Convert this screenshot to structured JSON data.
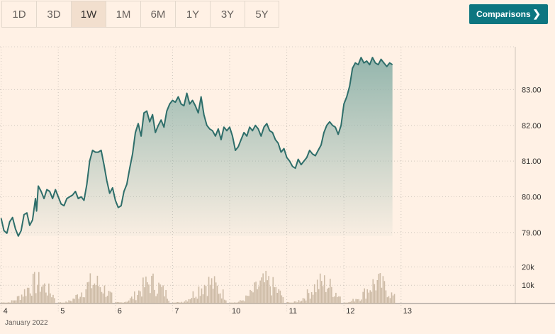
{
  "toolbar": {
    "ranges": [
      "1D",
      "3D",
      "1W",
      "1M",
      "6M",
      "1Y",
      "3Y",
      "5Y"
    ],
    "active_range": "1W",
    "comparisons_label": "Comparisons",
    "comparisons_icon": "chevron-right-icon"
  },
  "colors": {
    "background": "#fff1e5",
    "line": "#2e6e6a",
    "area_top": "#8fb3aa",
    "volume": "#cdbba6",
    "accent_button": "#0d7680"
  },
  "chart_data": {
    "type": "area",
    "price": {
      "ylim": [
        78.6,
        84.2
      ],
      "yticks": [
        "83.00",
        "82.00",
        "81.00",
        "80.00",
        "79.00"
      ],
      "ytick_values": [
        83,
        82,
        81,
        80,
        79
      ],
      "x_domain": [
        3.98,
        13.0
      ],
      "points": [
        [
          4.0,
          79.4
        ],
        [
          4.05,
          79.05
        ],
        [
          4.1,
          78.98
        ],
        [
          4.15,
          79.3
        ],
        [
          4.2,
          79.42
        ],
        [
          4.25,
          79.1
        ],
        [
          4.3,
          78.9
        ],
        [
          4.35,
          79.05
        ],
        [
          4.4,
          79.5
        ],
        [
          4.45,
          79.55
        ],
        [
          4.5,
          79.2
        ],
        [
          4.55,
          79.35
        ],
        [
          4.6,
          79.95
        ],
        [
          4.62,
          79.6
        ],
        [
          4.65,
          80.3
        ],
        [
          4.7,
          80.15
        ],
        [
          4.75,
          79.95
        ],
        [
          4.8,
          80.2
        ],
        [
          4.85,
          80.15
        ],
        [
          4.9,
          79.95
        ],
        [
          4.95,
          80.2
        ],
        [
          5.0,
          80.0
        ],
        [
          5.05,
          79.8
        ],
        [
          5.1,
          79.75
        ],
        [
          5.15,
          79.95
        ],
        [
          5.2,
          80.0
        ],
        [
          5.25,
          80.05
        ],
        [
          5.3,
          80.15
        ],
        [
          5.35,
          79.95
        ],
        [
          5.4,
          80.0
        ],
        [
          5.45,
          79.9
        ],
        [
          5.5,
          80.35
        ],
        [
          5.55,
          81.0
        ],
        [
          5.6,
          81.3
        ],
        [
          5.65,
          81.25
        ],
        [
          5.7,
          81.25
        ],
        [
          5.75,
          81.3
        ],
        [
          5.8,
          80.9
        ],
        [
          5.85,
          80.45
        ],
        [
          5.9,
          80.1
        ],
        [
          5.95,
          80.25
        ],
        [
          6.0,
          79.9
        ],
        [
          6.05,
          79.7
        ],
        [
          6.1,
          79.75
        ],
        [
          6.15,
          80.15
        ],
        [
          6.2,
          80.35
        ],
        [
          6.25,
          80.8
        ],
        [
          6.3,
          81.2
        ],
        [
          6.35,
          81.8
        ],
        [
          6.4,
          82.05
        ],
        [
          6.45,
          81.7
        ],
        [
          6.5,
          82.35
        ],
        [
          6.55,
          82.4
        ],
        [
          6.6,
          82.1
        ],
        [
          6.65,
          82.3
        ],
        [
          6.7,
          81.8
        ],
        [
          6.75,
          82.0
        ],
        [
          6.8,
          82.15
        ],
        [
          6.85,
          81.95
        ],
        [
          6.9,
          82.4
        ],
        [
          6.95,
          82.6
        ],
        [
          7.0,
          82.7
        ],
        [
          7.05,
          82.65
        ],
        [
          7.1,
          82.8
        ],
        [
          7.15,
          82.6
        ],
        [
          7.2,
          82.55
        ],
        [
          7.25,
          82.9
        ],
        [
          7.3,
          82.6
        ],
        [
          7.35,
          82.7
        ],
        [
          7.4,
          82.55
        ],
        [
          7.45,
          82.35
        ],
        [
          7.5,
          82.8
        ],
        [
          7.55,
          82.3
        ],
        [
          7.6,
          82.0
        ],
        [
          7.65,
          81.9
        ],
        [
          7.7,
          81.85
        ],
        [
          7.75,
          81.7
        ],
        [
          7.8,
          81.9
        ],
        [
          7.85,
          81.6
        ],
        [
          7.9,
          81.95
        ],
        [
          7.95,
          81.85
        ],
        [
          8.0,
          81.95
        ],
        [
          8.05,
          81.7
        ],
        [
          8.1,
          81.3
        ],
        [
          8.15,
          81.4
        ],
        [
          8.2,
          81.6
        ],
        [
          8.25,
          81.8
        ],
        [
          8.3,
          81.7
        ],
        [
          8.35,
          81.95
        ],
        [
          8.4,
          81.85
        ],
        [
          8.45,
          82.0
        ],
        [
          8.5,
          81.9
        ],
        [
          8.55,
          81.7
        ],
        [
          8.6,
          81.95
        ],
        [
          8.65,
          82.05
        ],
        [
          8.7,
          81.85
        ],
        [
          8.75,
          81.8
        ],
        [
          8.8,
          81.6
        ],
        [
          8.85,
          81.5
        ],
        [
          8.9,
          81.25
        ],
        [
          8.95,
          81.35
        ],
        [
          9.0,
          81.1
        ],
        [
          9.05,
          81.0
        ],
        [
          9.1,
          80.85
        ],
        [
          9.15,
          80.8
        ],
        [
          9.2,
          81.05
        ],
        [
          9.25,
          80.9
        ],
        [
          9.3,
          81.0
        ],
        [
          9.35,
          81.1
        ],
        [
          9.4,
          81.3
        ],
        [
          9.45,
          81.2
        ],
        [
          9.5,
          81.15
        ],
        [
          9.55,
          81.3
        ],
        [
          9.6,
          81.45
        ],
        [
          9.65,
          81.8
        ],
        [
          9.7,
          82.0
        ],
        [
          9.75,
          82.1
        ],
        [
          9.8,
          82.0
        ],
        [
          9.85,
          81.95
        ],
        [
          9.9,
          81.75
        ],
        [
          9.95,
          82.0
        ],
        [
          10.0,
          82.6
        ],
        [
          10.05,
          82.8
        ],
        [
          10.1,
          83.1
        ],
        [
          10.15,
          83.6
        ],
        [
          10.2,
          83.75
        ],
        [
          10.25,
          83.7
        ],
        [
          10.3,
          83.9
        ],
        [
          10.35,
          83.75
        ],
        [
          10.4,
          83.8
        ],
        [
          10.45,
          83.7
        ],
        [
          10.5,
          83.9
        ],
        [
          10.55,
          83.75
        ],
        [
          10.6,
          83.7
        ],
        [
          10.65,
          83.85
        ],
        [
          10.7,
          83.75
        ],
        [
          10.75,
          83.65
        ],
        [
          10.8,
          83.75
        ],
        [
          10.85,
          83.7
        ]
      ]
    },
    "volume": {
      "yticks": [
        "20k",
        "10k"
      ],
      "ytick_values": [
        20000,
        10000
      ],
      "ylim": [
        0,
        31000
      ]
    },
    "xaxis": {
      "ticks": [
        "4",
        "5",
        "6",
        "7",
        "10",
        "11",
        "12",
        "13"
      ],
      "tick_positions": [
        4,
        5,
        6,
        7,
        8,
        9,
        10,
        11
      ],
      "sublabel": "January 2022"
    },
    "grid": true
  }
}
